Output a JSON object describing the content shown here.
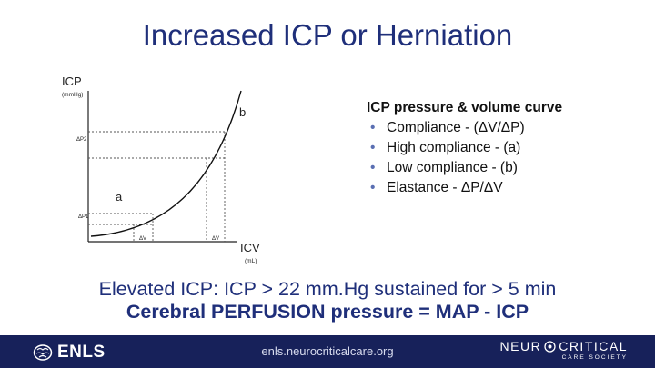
{
  "title": "Increased ICP or Herniation",
  "diagram": {
    "y_axis_label": "ICP",
    "y_axis_unit": "(mmHg)",
    "x_axis_label": "ICV",
    "x_axis_unit": "(mL)",
    "point_a": "a",
    "point_b": "b",
    "delta_p1": "ΔP1",
    "delta_p2": "ΔP2",
    "delta_v1": "ΔV",
    "delta_v2": "ΔV"
  },
  "notes": {
    "heading": "ICP pressure & volume curve",
    "items": [
      "Compliance - (ΔV/ΔP)",
      "High compliance - (a)",
      "Low compliance - (b)",
      "Elastance - ΔP/ΔV"
    ]
  },
  "elevated_text": "Elevated ICP: ICP > 22 mm.Hg sustained for > 5 min",
  "perfusion_text": "Cerebral PERFUSION pressure = MAP - ICP",
  "footer": {
    "left_logo": "ENLS",
    "url": "enls.neurocriticalcare.org",
    "right_logo_part1": "NEUR",
    "right_logo_part2": "CRITICAL",
    "right_logo_sub": "CARE SOCIETY"
  },
  "colors": {
    "title": "#1f2f7a",
    "footer_bg": "#17215a"
  }
}
